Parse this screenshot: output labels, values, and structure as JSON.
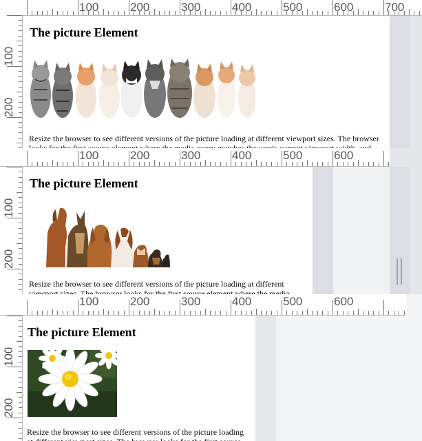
{
  "ruler_labels": [
    "100",
    "200",
    "300",
    "400",
    "500",
    "600",
    "700"
  ],
  "ruler_left_labels": [
    "100",
    "200"
  ],
  "panels": [
    {
      "heading": "The picture Element",
      "paragraph": "Resize the browser to see different versions of the picture loading at different viewport sizes. The browser looks for the first source element where the media query matches the user's current viewport width, and",
      "image_alt": "row of kittens"
    },
    {
      "heading": "The picture Element",
      "paragraph": "Resize the browser to see different versions of the picture loading at different viewport sizes. The browser looks for the first source element where the media",
      "image_alt": "row of dogs"
    },
    {
      "heading": "The picture Element",
      "paragraph": "Resize the browser to see different versions of the picture loading at different viewport sizes. The browser looks for the first source",
      "image_alt": "daisy flowers"
    }
  ],
  "colors": {
    "page_bg": "#ffffff",
    "gutter": "#dcdee3",
    "ruler_bg": "#ffffff",
    "ruler_ink": "#555555"
  }
}
